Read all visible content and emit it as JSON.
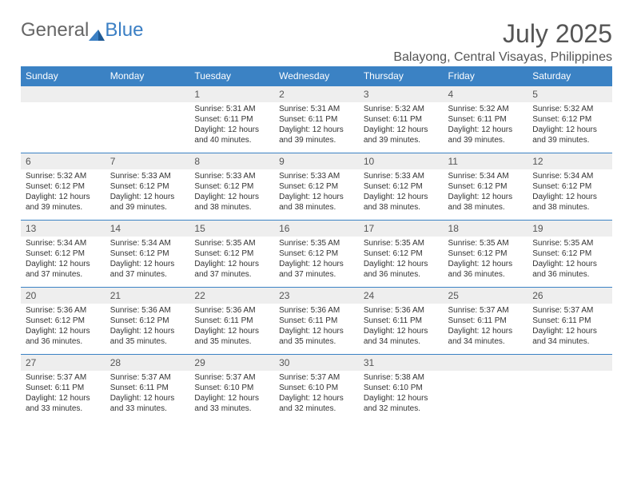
{
  "brand": {
    "part1": "General",
    "part2": "Blue"
  },
  "title": "July 2025",
  "location": "Balayong, Central Visayas, Philippines",
  "colors": {
    "header_bg": "#3b82c4",
    "header_text": "#ffffff",
    "daynum_bg": "#eeeeee",
    "border": "#3b82c4",
    "text": "#333333",
    "title": "#555555"
  },
  "weekdays": [
    "Sunday",
    "Monday",
    "Tuesday",
    "Wednesday",
    "Thursday",
    "Friday",
    "Saturday"
  ],
  "weeks": [
    [
      null,
      null,
      {
        "n": "1",
        "sr": "5:31 AM",
        "ss": "6:11 PM",
        "dh": "12",
        "dm": "40"
      },
      {
        "n": "2",
        "sr": "5:31 AM",
        "ss": "6:11 PM",
        "dh": "12",
        "dm": "39"
      },
      {
        "n": "3",
        "sr": "5:32 AM",
        "ss": "6:11 PM",
        "dh": "12",
        "dm": "39"
      },
      {
        "n": "4",
        "sr": "5:32 AM",
        "ss": "6:11 PM",
        "dh": "12",
        "dm": "39"
      },
      {
        "n": "5",
        "sr": "5:32 AM",
        "ss": "6:12 PM",
        "dh": "12",
        "dm": "39"
      }
    ],
    [
      {
        "n": "6",
        "sr": "5:32 AM",
        "ss": "6:12 PM",
        "dh": "12",
        "dm": "39"
      },
      {
        "n": "7",
        "sr": "5:33 AM",
        "ss": "6:12 PM",
        "dh": "12",
        "dm": "39"
      },
      {
        "n": "8",
        "sr": "5:33 AM",
        "ss": "6:12 PM",
        "dh": "12",
        "dm": "38"
      },
      {
        "n": "9",
        "sr": "5:33 AM",
        "ss": "6:12 PM",
        "dh": "12",
        "dm": "38"
      },
      {
        "n": "10",
        "sr": "5:33 AM",
        "ss": "6:12 PM",
        "dh": "12",
        "dm": "38"
      },
      {
        "n": "11",
        "sr": "5:34 AM",
        "ss": "6:12 PM",
        "dh": "12",
        "dm": "38"
      },
      {
        "n": "12",
        "sr": "5:34 AM",
        "ss": "6:12 PM",
        "dh": "12",
        "dm": "38"
      }
    ],
    [
      {
        "n": "13",
        "sr": "5:34 AM",
        "ss": "6:12 PM",
        "dh": "12",
        "dm": "37"
      },
      {
        "n": "14",
        "sr": "5:34 AM",
        "ss": "6:12 PM",
        "dh": "12",
        "dm": "37"
      },
      {
        "n": "15",
        "sr": "5:35 AM",
        "ss": "6:12 PM",
        "dh": "12",
        "dm": "37"
      },
      {
        "n": "16",
        "sr": "5:35 AM",
        "ss": "6:12 PM",
        "dh": "12",
        "dm": "37"
      },
      {
        "n": "17",
        "sr": "5:35 AM",
        "ss": "6:12 PM",
        "dh": "12",
        "dm": "36"
      },
      {
        "n": "18",
        "sr": "5:35 AM",
        "ss": "6:12 PM",
        "dh": "12",
        "dm": "36"
      },
      {
        "n": "19",
        "sr": "5:35 AM",
        "ss": "6:12 PM",
        "dh": "12",
        "dm": "36"
      }
    ],
    [
      {
        "n": "20",
        "sr": "5:36 AM",
        "ss": "6:12 PM",
        "dh": "12",
        "dm": "36"
      },
      {
        "n": "21",
        "sr": "5:36 AM",
        "ss": "6:12 PM",
        "dh": "12",
        "dm": "35"
      },
      {
        "n": "22",
        "sr": "5:36 AM",
        "ss": "6:11 PM",
        "dh": "12",
        "dm": "35"
      },
      {
        "n": "23",
        "sr": "5:36 AM",
        "ss": "6:11 PM",
        "dh": "12",
        "dm": "35"
      },
      {
        "n": "24",
        "sr": "5:36 AM",
        "ss": "6:11 PM",
        "dh": "12",
        "dm": "34"
      },
      {
        "n": "25",
        "sr": "5:37 AM",
        "ss": "6:11 PM",
        "dh": "12",
        "dm": "34"
      },
      {
        "n": "26",
        "sr": "5:37 AM",
        "ss": "6:11 PM",
        "dh": "12",
        "dm": "34"
      }
    ],
    [
      {
        "n": "27",
        "sr": "5:37 AM",
        "ss": "6:11 PM",
        "dh": "12",
        "dm": "33"
      },
      {
        "n": "28",
        "sr": "5:37 AM",
        "ss": "6:11 PM",
        "dh": "12",
        "dm": "33"
      },
      {
        "n": "29",
        "sr": "5:37 AM",
        "ss": "6:10 PM",
        "dh": "12",
        "dm": "33"
      },
      {
        "n": "30",
        "sr": "5:37 AM",
        "ss": "6:10 PM",
        "dh": "12",
        "dm": "32"
      },
      {
        "n": "31",
        "sr": "5:38 AM",
        "ss": "6:10 PM",
        "dh": "12",
        "dm": "32"
      },
      null,
      null
    ]
  ],
  "labels": {
    "sunrise": "Sunrise:",
    "sunset": "Sunset:",
    "daylight_prefix": "Daylight:",
    "hours_word": "hours",
    "and_word": "and",
    "minutes_word": "minutes."
  }
}
